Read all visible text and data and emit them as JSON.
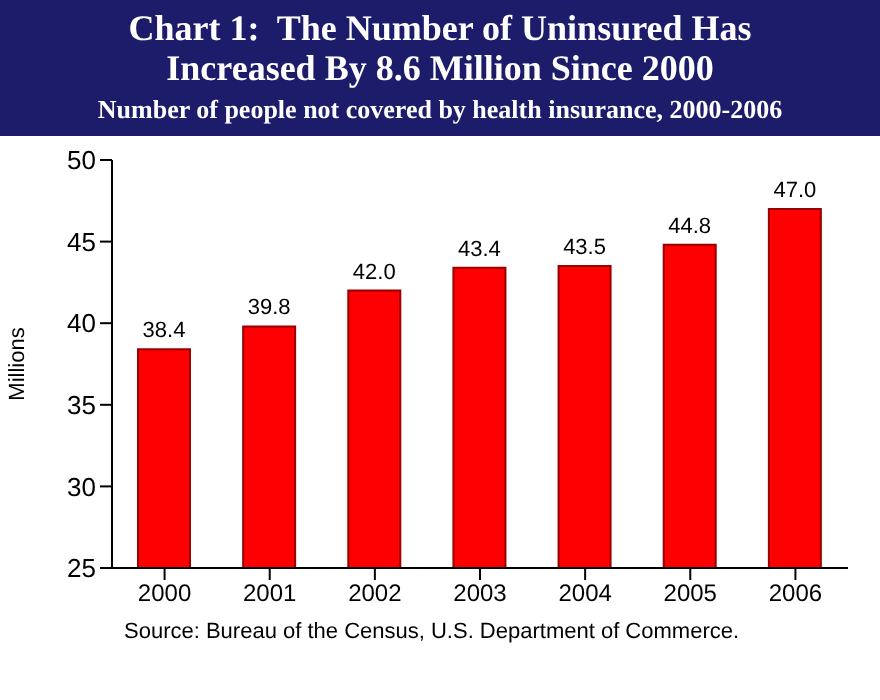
{
  "chart_data": {
    "type": "bar",
    "title": "Chart 1:  The Number of Uninsured Has Increased By 8.6 Million Since 2000",
    "subtitle": "Number of people not covered by health insurance, 2000-2006",
    "ylabel": "Millions",
    "categories": [
      "2000",
      "2001",
      "2002",
      "2003",
      "2004",
      "2005",
      "2006"
    ],
    "values": [
      38.4,
      39.8,
      42.0,
      43.4,
      43.5,
      44.8,
      47.0
    ],
    "value_labels": [
      "38.4",
      "39.8",
      "42.0",
      "43.4",
      "43.5",
      "44.8",
      "47.0"
    ],
    "color": "#ff0000",
    "ylim": [
      25,
      50
    ],
    "yticks": [
      25,
      30,
      35,
      40,
      45,
      50
    ],
    "grid": false,
    "annotations": [
      "Source: Bureau of the Census, U.S. Department of Commerce."
    ]
  }
}
